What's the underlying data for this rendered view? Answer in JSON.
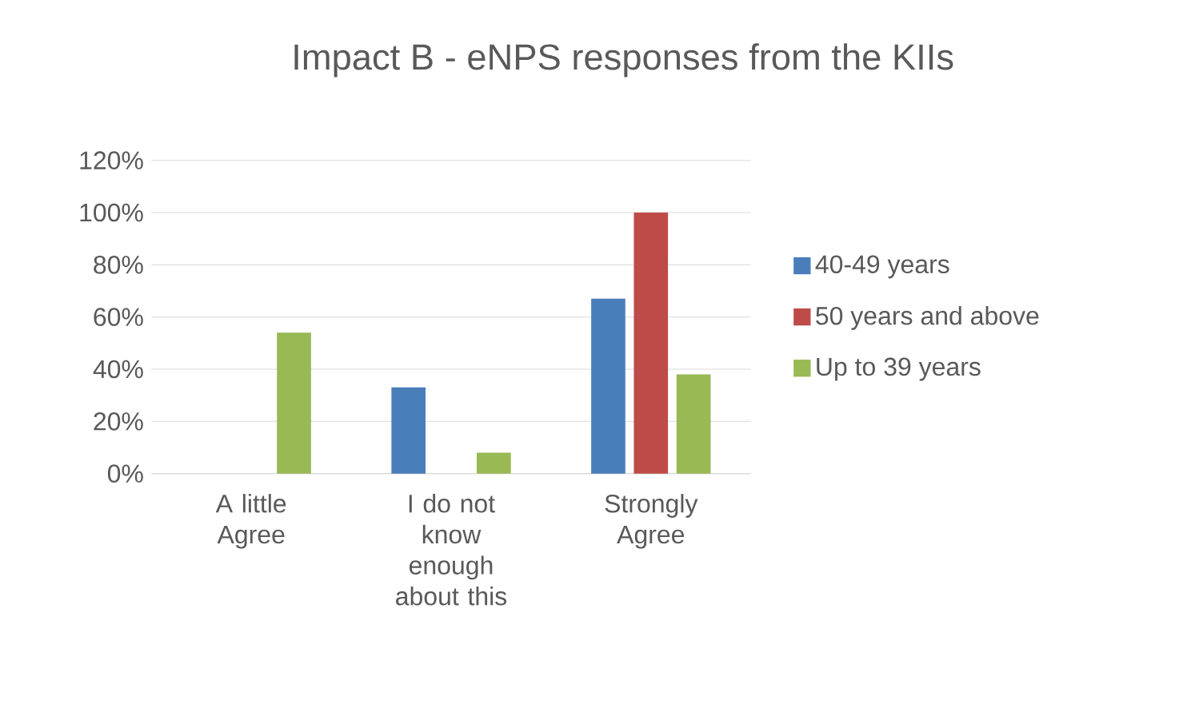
{
  "chart_data": {
    "type": "bar",
    "title": "Impact B - eNPS responses from the KIIs",
    "categories": [
      "A little Agree",
      "I do not know enough about this",
      "Strongly Agree"
    ],
    "series": [
      {
        "name": "40-49 years",
        "color": "#4a7ebb",
        "values": [
          0,
          33,
          67
        ]
      },
      {
        "name": "50 years and above",
        "color": "#be4b48",
        "values": [
          0,
          0,
          100
        ]
      },
      {
        "name": "Up to 39 years",
        "color": "#98b954",
        "values": [
          54,
          8,
          38
        ]
      }
    ],
    "ylim": [
      0,
      120
    ],
    "yticks": [
      {
        "value": 0,
        "label": "0%"
      },
      {
        "value": 20,
        "label": "20%"
      },
      {
        "value": 40,
        "label": "40%"
      },
      {
        "value": 60,
        "label": "60%"
      },
      {
        "value": 80,
        "label": "80%"
      },
      {
        "value": 100,
        "label": "100%"
      },
      {
        "value": 120,
        "label": "120%"
      }
    ],
    "grid": "y",
    "legend": "right"
  }
}
